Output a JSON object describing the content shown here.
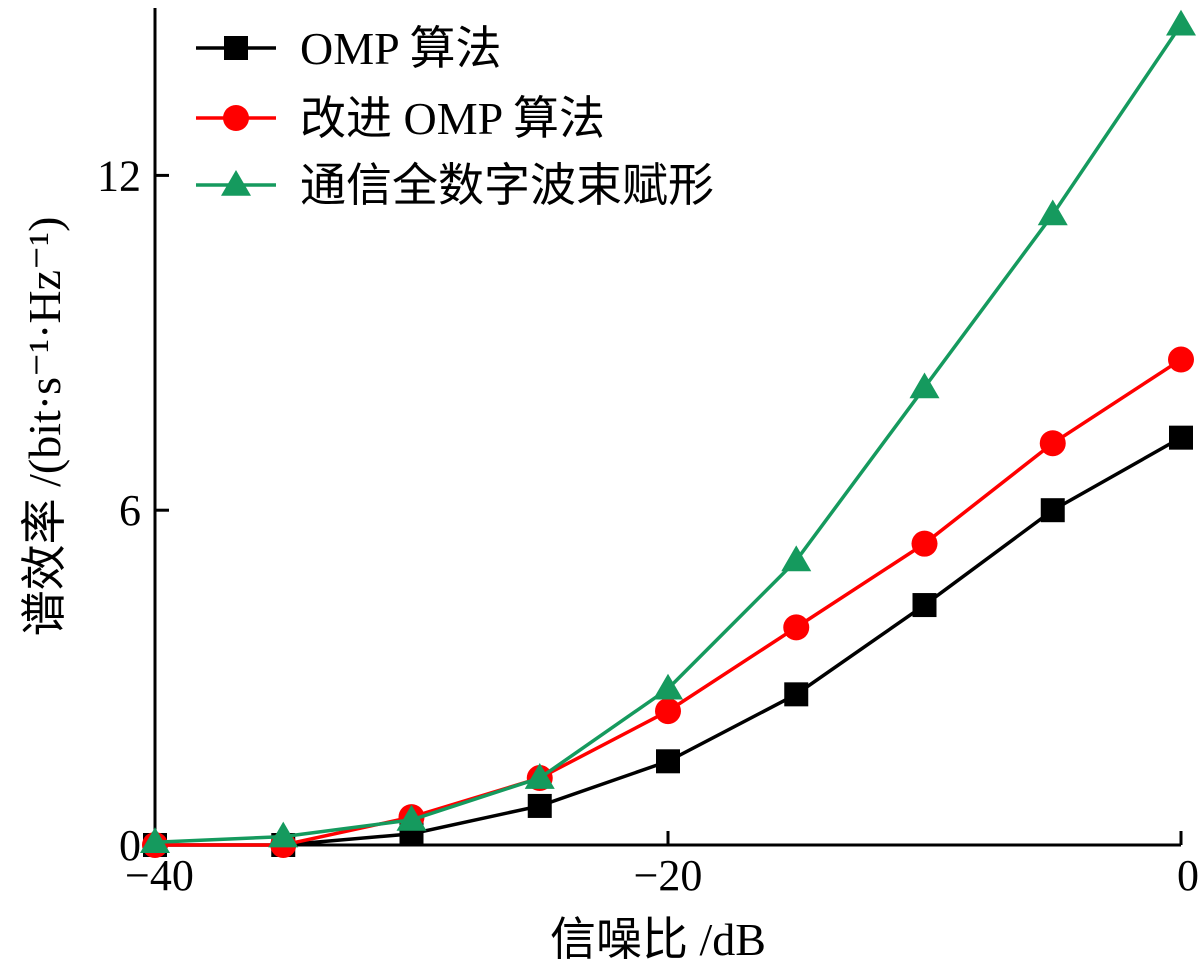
{
  "chart_data": {
    "type": "line",
    "xlabel": "信噪比 /dB",
    "ylabel": "谱效率 /(bit·s⁻¹·Hz⁻¹)",
    "xlim": [
      -40,
      0
    ],
    "ylim": [
      0,
      15
    ],
    "xticks": [
      -40,
      -20,
      0
    ],
    "xtick_labels": [
      "−40",
      "−20",
      "0"
    ],
    "yticks": [
      0,
      6,
      12
    ],
    "ytick_labels": [
      "0",
      "6",
      "12"
    ],
    "grid": false,
    "legend_position": "top-left",
    "x": [
      -40,
      -35,
      -30,
      -25,
      -20,
      -15,
      -10,
      -5,
      0
    ],
    "series": [
      {
        "name": "OMP 算法",
        "color": "#000000",
        "marker": "square",
        "values": [
          0.0,
          0.0,
          0.2,
          0.7,
          1.5,
          2.7,
          4.3,
          6.0,
          7.3
        ]
      },
      {
        "name": "改进 OMP 算法",
        "color": "#ff0000",
        "marker": "circle",
        "values": [
          0.0,
          0.0,
          0.5,
          1.2,
          2.4,
          3.9,
          5.4,
          7.2,
          8.7
        ]
      },
      {
        "name": "通信全数字波束赋形",
        "color": "#159a5e",
        "marker": "triangle",
        "values": [
          0.05,
          0.15,
          0.45,
          1.2,
          2.8,
          5.1,
          8.2,
          11.3,
          14.7
        ]
      }
    ]
  }
}
